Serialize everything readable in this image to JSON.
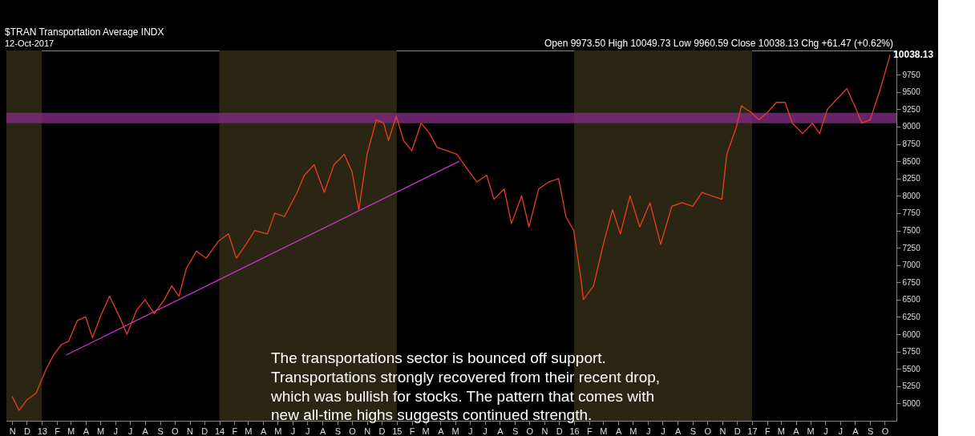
{
  "chart_data": {
    "type": "line",
    "title": "$TRAN Transportation Average INDX",
    "annotations": [
      "12-Oct-2017",
      "Open 9973.50 High 10049.73 Low 9960.59 Close 10038.13 Chg +61.47 (+0.62%)",
      "The transportations sector is bounced off support.\nTransportations strongly recovered from their recent drop,\nwhich was bullish for stocks. The pattern that comes with\nnew all-time highs suggests continued strength.",
      {
        "text": "10038.13",
        "x": "2017-10-12",
        "y": 10038.13
      }
    ],
    "xlim": [
      "2012-10-20",
      "2017-10-25"
    ],
    "ylim": [
      4750,
      10100
    ],
    "yticks": [
      5000,
      5250,
      5500,
      5750,
      6000,
      6250,
      6500,
      6750,
      7000,
      7250,
      7500,
      7750,
      8000,
      8250,
      8500,
      8750,
      9000,
      9250,
      9500,
      9750
    ],
    "xticks": [
      {
        "value": "2012-11-01",
        "label": "N"
      },
      {
        "value": "2012-12-01",
        "label": "D"
      },
      {
        "value": "2013-01-01",
        "label": "13"
      },
      {
        "value": "2013-02-01",
        "label": "F"
      },
      {
        "value": "2013-03-01",
        "label": "M"
      },
      {
        "value": "2013-04-01",
        "label": "A"
      },
      {
        "value": "2013-05-01",
        "label": "M"
      },
      {
        "value": "2013-06-01",
        "label": "J"
      },
      {
        "value": "2013-07-01",
        "label": "J"
      },
      {
        "value": "2013-08-01",
        "label": "A"
      },
      {
        "value": "2013-09-01",
        "label": "S"
      },
      {
        "value": "2013-10-01",
        "label": "O"
      },
      {
        "value": "2013-11-01",
        "label": "N"
      },
      {
        "value": "2013-12-01",
        "label": "D"
      },
      {
        "value": "2014-01-01",
        "label": "14"
      },
      {
        "value": "2014-02-01",
        "label": "F"
      },
      {
        "value": "2014-03-01",
        "label": "M"
      },
      {
        "value": "2014-04-01",
        "label": "A"
      },
      {
        "value": "2014-05-01",
        "label": "M"
      },
      {
        "value": "2014-06-01",
        "label": "J"
      },
      {
        "value": "2014-07-01",
        "label": "J"
      },
      {
        "value": "2014-08-01",
        "label": "A"
      },
      {
        "value": "2014-09-01",
        "label": "S"
      },
      {
        "value": "2014-10-01",
        "label": "O"
      },
      {
        "value": "2014-11-01",
        "label": "N"
      },
      {
        "value": "2014-12-01",
        "label": "D"
      },
      {
        "value": "2015-01-01",
        "label": "15"
      },
      {
        "value": "2015-02-01",
        "label": "F"
      },
      {
        "value": "2015-03-01",
        "label": "M"
      },
      {
        "value": "2015-04-01",
        "label": "A"
      },
      {
        "value": "2015-05-01",
        "label": "M"
      },
      {
        "value": "2015-06-01",
        "label": "J"
      },
      {
        "value": "2015-07-01",
        "label": "J"
      },
      {
        "value": "2015-08-01",
        "label": "A"
      },
      {
        "value": "2015-09-01",
        "label": "S"
      },
      {
        "value": "2015-10-01",
        "label": "O"
      },
      {
        "value": "2015-11-01",
        "label": "N"
      },
      {
        "value": "2015-12-01",
        "label": "D"
      },
      {
        "value": "2016-01-01",
        "label": "16"
      },
      {
        "value": "2016-02-01",
        "label": "F"
      },
      {
        "value": "2016-03-01",
        "label": "M"
      },
      {
        "value": "2016-04-01",
        "label": "A"
      },
      {
        "value": "2016-05-01",
        "label": "M"
      },
      {
        "value": "2016-06-01",
        "label": "J"
      },
      {
        "value": "2016-07-01",
        "label": "J"
      },
      {
        "value": "2016-08-01",
        "label": "A"
      },
      {
        "value": "2016-09-01",
        "label": "S"
      },
      {
        "value": "2016-10-01",
        "label": "O"
      },
      {
        "value": "2016-11-01",
        "label": "N"
      },
      {
        "value": "2016-12-01",
        "label": "D"
      },
      {
        "value": "2017-01-01",
        "label": "17"
      },
      {
        "value": "2017-02-01",
        "label": "F"
      },
      {
        "value": "2017-03-01",
        "label": "M"
      },
      {
        "value": "2017-04-01",
        "label": "A"
      },
      {
        "value": "2017-05-01",
        "label": "M"
      },
      {
        "value": "2017-06-01",
        "label": "J"
      },
      {
        "value": "2017-07-01",
        "label": "J"
      },
      {
        "value": "2017-08-01",
        "label": "A"
      },
      {
        "value": "2017-09-01",
        "label": "S"
      },
      {
        "value": "2017-10-01",
        "label": "O"
      }
    ],
    "bands": [
      {
        "axis": "x",
        "from": "2012-10-20",
        "to": "2013-01-01",
        "color": "#2b2614"
      },
      {
        "axis": "x",
        "from": "2014-01-01",
        "to": "2015-01-01",
        "color": "#2b2614"
      },
      {
        "axis": "x",
        "from": "2016-01-01",
        "to": "2017-01-01",
        "color": "#2b2614"
      },
      {
        "axis": "y",
        "from": 9050,
        "to": 9200,
        "color": "#7a2a7a"
      }
    ],
    "series": [
      {
        "color": "#e8401e",
        "x": [
          "2012-11-01",
          "2012-11-15",
          "2012-12-01",
          "2012-12-20",
          "2013-01-10",
          "2013-01-25",
          "2013-02-10",
          "2013-02-25",
          "2013-03-15",
          "2013-04-01",
          "2013-04-15",
          "2013-05-01",
          "2013-05-20",
          "2013-06-10",
          "2013-06-25",
          "2013-07-15",
          "2013-08-01",
          "2013-08-20",
          "2013-09-10",
          "2013-09-25",
          "2013-10-10",
          "2013-10-25",
          "2013-11-15",
          "2013-12-05",
          "2013-12-31",
          "2014-01-20",
          "2014-02-05",
          "2014-02-25",
          "2014-03-15",
          "2014-04-10",
          "2014-04-25",
          "2014-05-15",
          "2014-06-10",
          "2014-06-25",
          "2014-07-15",
          "2014-08-05",
          "2014-08-25",
          "2014-09-15",
          "2014-10-01",
          "2014-10-15",
          "2014-11-01",
          "2014-11-20",
          "2014-12-05",
          "2014-12-15",
          "2014-12-31",
          "2015-01-15",
          "2015-02-01",
          "2015-02-20",
          "2015-03-10",
          "2015-03-25",
          "2015-04-15",
          "2015-05-05",
          "2015-05-25",
          "2015-06-15",
          "2015-07-05",
          "2015-07-20",
          "2015-08-10",
          "2015-08-25",
          "2015-09-15",
          "2015-09-30",
          "2015-10-20",
          "2015-11-10",
          "2015-11-30",
          "2015-12-15",
          "2015-12-31",
          "2016-01-15",
          "2016-01-20",
          "2016-02-10",
          "2016-03-01",
          "2016-03-20",
          "2016-04-05",
          "2016-04-25",
          "2016-05-15",
          "2016-06-05",
          "2016-06-27",
          "2016-07-20",
          "2016-08-10",
          "2016-09-01",
          "2016-09-20",
          "2016-10-10",
          "2016-10-31",
          "2016-11-10",
          "2016-11-30",
          "2016-12-10",
          "2016-12-31",
          "2017-01-15",
          "2017-02-01",
          "2017-02-20",
          "2017-03-10",
          "2017-03-25",
          "2017-04-15",
          "2017-05-05",
          "2017-05-20",
          "2017-06-05",
          "2017-06-25",
          "2017-07-15",
          "2017-07-31",
          "2017-08-15",
          "2017-09-01",
          "2017-09-20",
          "2017-10-12"
        ],
        "values": [
          5100,
          4900,
          5050,
          5150,
          5500,
          5700,
          5850,
          5900,
          6200,
          6250,
          5950,
          6250,
          6550,
          6250,
          6000,
          6350,
          6500,
          6300,
          6500,
          6700,
          6550,
          6950,
          7200,
          7100,
          7350,
          7450,
          7100,
          7300,
          7500,
          7450,
          7750,
          7700,
          8050,
          8300,
          8450,
          8050,
          8450,
          8600,
          8350,
          7800,
          8600,
          9100,
          9050,
          8800,
          9150,
          8800,
          8650,
          9050,
          8900,
          8700,
          8650,
          8600,
          8400,
          8200,
          8300,
          7950,
          8100,
          7600,
          8000,
          7550,
          8100,
          8200,
          8250,
          7700,
          7500,
          6800,
          6500,
          6700,
          7300,
          7800,
          7450,
          8000,
          7550,
          7900,
          7300,
          7850,
          7900,
          7850,
          8050,
          8000,
          7950,
          8600,
          9000,
          9300,
          9200,
          9100,
          9200,
          9350,
          9350,
          9050,
          8900,
          9050,
          8900,
          9250,
          9400,
          9550,
          9300,
          9050,
          9100,
          9500,
          10038.13
        ]
      },
      {
        "color": "#cc33cc",
        "x": [
          "2013-02-20",
          "2015-05-10"
        ],
        "values": [
          5700,
          8500
        ]
      }
    ],
    "grid": false
  }
}
